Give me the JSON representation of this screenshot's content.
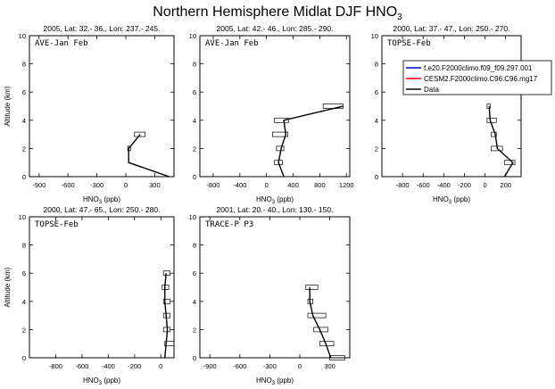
{
  "title_main": "Northern Hemisphere Midlat DJF HNO",
  "title_sub": "3",
  "xlabel_main": "HNO",
  "xlabel_sub": "3",
  "xlabel_unit": " (ppb)",
  "ylabel": "Altitude (km)",
  "legend": [
    {
      "label": "f.e20.F2000climo.f09_f09.297.001",
      "color": "#0000cc"
    },
    {
      "label": "CESM2.F2000climo.C96.C96.mg17",
      "color": "#ff0000"
    },
    {
      "label": "Data",
      "color": "#000000"
    }
  ],
  "chart_data": [
    {
      "type": "line",
      "title": "2005, Lat: 32.- 36., Lon: 237.- 245.",
      "inner_label": "AVE-Jan Feb",
      "xlim": [
        -1000,
        500
      ],
      "ylim": [
        0,
        10
      ],
      "xticks": [
        -900,
        -600,
        -300,
        0,
        300
      ],
      "yticks": [
        0,
        2,
        4,
        6,
        8,
        10
      ],
      "series": [
        {
          "x": [
            450,
            30,
            30,
            150
          ],
          "y": [
            0,
            1,
            2,
            3
          ]
        }
      ],
      "boxes": [
        [
          20,
          50,
          2
        ],
        [
          90,
          200,
          3
        ]
      ]
    },
    {
      "type": "line",
      "title": "2005, Lat: 42.- 46., Lon: 285.- 290.",
      "inner_label": "AVE-Jan Feb",
      "xlim": [
        -1000,
        1250
      ],
      "ylim": [
        0,
        10
      ],
      "xticks": [
        -800,
        -400,
        0,
        400,
        800,
        1200
      ],
      "yticks": [
        0,
        2,
        4,
        6,
        8,
        10
      ],
      "series": [
        {
          "x": [
            260,
            180,
            220,
            290,
            260,
            1150
          ],
          "y": [
            0,
            1,
            2,
            3,
            4,
            5
          ]
        }
      ],
      "boxes": [
        [
          120,
          240,
          1
        ],
        [
          150,
          260,
          2
        ],
        [
          90,
          320,
          3
        ],
        [
          120,
          330,
          4
        ],
        [
          850,
          1150,
          5
        ]
      ]
    },
    {
      "type": "line",
      "title": "2000, Lat: 37.- 47., Lon: 250.- 270.",
      "inner_label": "TOPSE-Feb",
      "xlim": [
        -1000,
        350
      ],
      "ylim": [
        0,
        10
      ],
      "xticks": [
        -800,
        -600,
        -400,
        -200,
        0,
        200
      ],
      "yticks": [
        0,
        2,
        4,
        6,
        8,
        10
      ],
      "series": [
        {
          "x": [
            190,
            270,
            120,
            100,
            50,
            40
          ],
          "y": [
            0,
            1,
            2,
            3,
            4,
            5
          ]
        }
      ],
      "boxes": [
        [
          190,
          290,
          1
        ],
        [
          60,
          170,
          2
        ],
        [
          60,
          110,
          3
        ],
        [
          20,
          110,
          4
        ],
        [
          20,
          50,
          5
        ]
      ]
    },
    {
      "type": "line",
      "title": "2000, Lat: 47.- 65., Lon: 250.- 280.",
      "inner_label": "TOPSE-Feb",
      "xlim": [
        -1000,
        100
      ],
      "ylim": [
        0,
        10
      ],
      "xticks": [
        -800,
        -600,
        -400,
        -200,
        0
      ],
      "yticks": [
        0,
        2,
        4,
        6,
        8,
        10
      ],
      "series": [
        {
          "x": [
            30,
            40,
            50,
            40,
            30,
            30,
            40
          ],
          "y": [
            0,
            1,
            2,
            3,
            4,
            5,
            6
          ]
        }
      ],
      "boxes": [
        [
          30,
          100,
          1
        ],
        [
          20,
          70,
          2
        ],
        [
          20,
          70,
          3
        ],
        [
          20,
          70,
          4
        ],
        [
          10,
          60,
          5
        ],
        [
          20,
          70,
          6
        ]
      ]
    },
    {
      "type": "line",
      "title": "2001, Lat: 20.- 40., Lon: 130.- 150.",
      "inner_label": "TRACE-P P3",
      "xlim": [
        -1000,
        500
      ],
      "ylim": [
        0,
        10
      ],
      "xticks": [
        -900,
        -600,
        -300,
        0,
        300
      ],
      "yticks": [
        0,
        2,
        4,
        6,
        8,
        10
      ],
      "series": [
        {
          "x": [
            310,
            260,
            200,
            130,
            100,
            100
          ],
          "y": [
            0,
            1,
            2,
            3,
            4,
            5
          ]
        }
      ],
      "boxes": [
        [
          300,
          450,
          0
        ],
        [
          200,
          340,
          1
        ],
        [
          140,
          280,
          2
        ],
        [
          80,
          260,
          3
        ],
        [
          80,
          130,
          4
        ],
        [
          60,
          180,
          5
        ]
      ]
    }
  ]
}
